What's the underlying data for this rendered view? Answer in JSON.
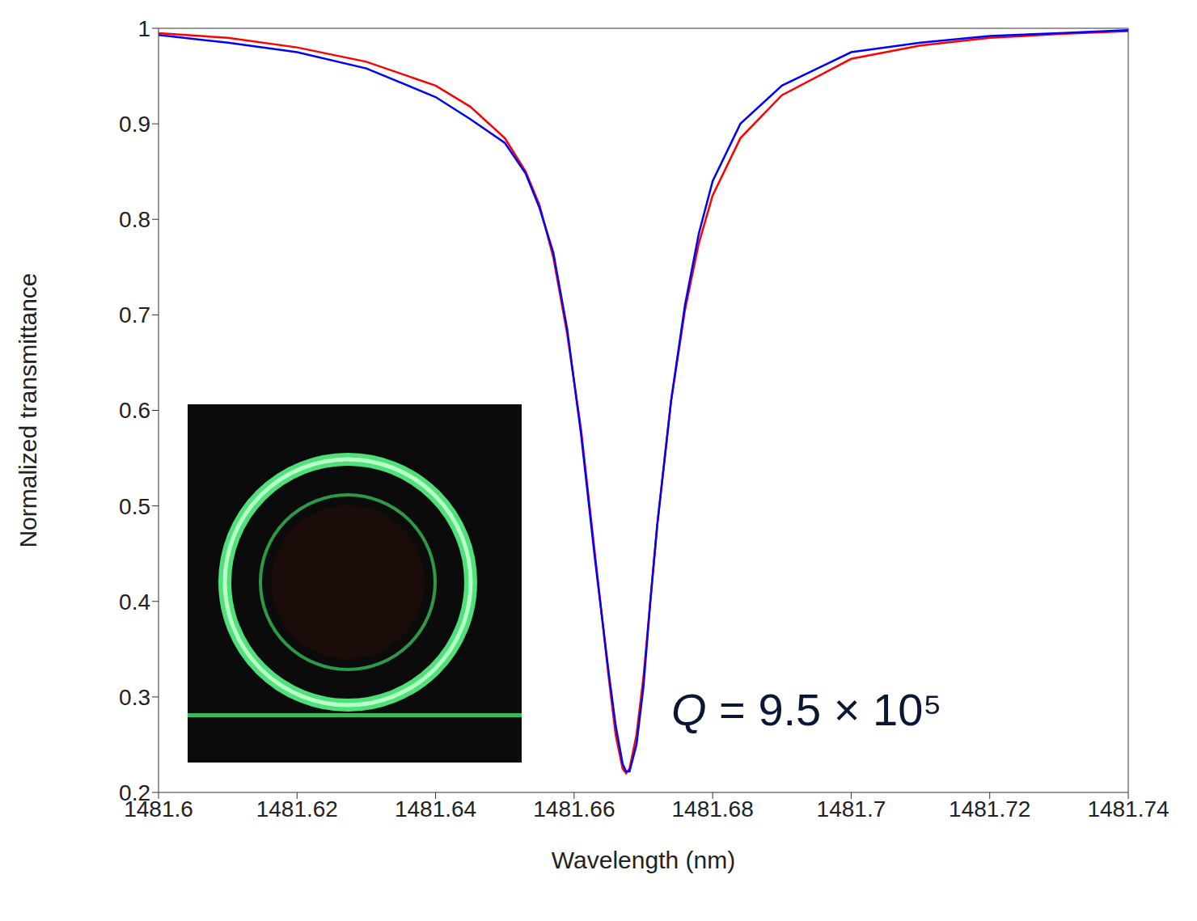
{
  "chart_data": {
    "type": "line",
    "xlabel": "Wavelength (nm)",
    "ylabel": "Normalized transmittance",
    "annotation": "Q = 9.5 × 10⁵",
    "x": [
      1481.6,
      1481.61,
      1481.62,
      1481.63,
      1481.64,
      1481.645,
      1481.65,
      1481.653,
      1481.655,
      1481.657,
      1481.659,
      1481.661,
      1481.663,
      1481.665,
      1481.666,
      1481.667,
      1481.6675,
      1481.668,
      1481.669,
      1481.67,
      1481.671,
      1481.672,
      1481.674,
      1481.676,
      1481.678,
      1481.68,
      1481.684,
      1481.69,
      1481.7,
      1481.71,
      1481.72,
      1481.73,
      1481.74
    ],
    "series": [
      {
        "color": "#ff0000",
        "values": [
          0.995,
          0.99,
          0.98,
          0.965,
          0.94,
          0.918,
          0.885,
          0.85,
          0.815,
          0.76,
          0.68,
          0.58,
          0.45,
          0.32,
          0.26,
          0.225,
          0.22,
          0.225,
          0.26,
          0.32,
          0.4,
          0.48,
          0.61,
          0.705,
          0.775,
          0.825,
          0.885,
          0.93,
          0.968,
          0.982,
          0.99,
          0.994,
          0.997
        ]
      },
      {
        "color": "#0000ff",
        "values": [
          0.993,
          0.985,
          0.975,
          0.958,
          0.928,
          0.905,
          0.88,
          0.848,
          0.812,
          0.765,
          0.685,
          0.575,
          0.445,
          0.325,
          0.27,
          0.23,
          0.222,
          0.222,
          0.25,
          0.31,
          0.4,
          0.48,
          0.61,
          0.71,
          0.785,
          0.84,
          0.9,
          0.94,
          0.975,
          0.985,
          0.992,
          0.995,
          0.998
        ]
      }
    ],
    "xlim": [
      1481.6,
      1481.74
    ],
    "xticks": [
      1481.6,
      1481.62,
      1481.64,
      1481.66,
      1481.68,
      1481.7,
      1481.72,
      1481.74
    ],
    "ylim": [
      0.2,
      1
    ],
    "yticks": [
      0.2,
      0.3,
      0.4,
      0.5,
      0.6,
      0.7,
      0.8,
      0.9,
      1
    ],
    "grid": false
  }
}
